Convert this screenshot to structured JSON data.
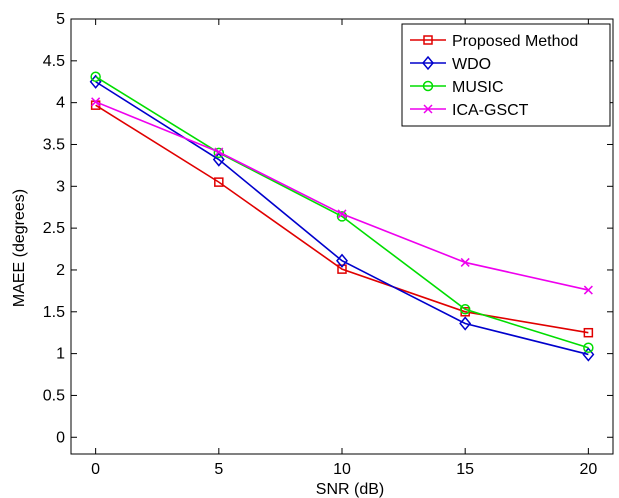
{
  "chart_data": {
    "type": "line",
    "title": "",
    "xlabel": "SNR (dB)",
    "ylabel": "MAEE (degrees)",
    "x": [
      0,
      5,
      10,
      15,
      20
    ],
    "xlim": [
      -1,
      21
    ],
    "ylim": [
      -0.2,
      5
    ],
    "xticks": [
      "0",
      "5",
      "10",
      "15",
      "20"
    ],
    "yticks": [
      "0",
      "0.5",
      "1",
      "1.5",
      "2",
      "2.5",
      "3",
      "3.5",
      "4",
      "4.5",
      "5"
    ],
    "grid": false,
    "legend_position": "top-right",
    "series": [
      {
        "name": "Proposed Method",
        "color": "#e00000",
        "marker": "square",
        "values": [
          3.97,
          3.05,
          2.01,
          1.5,
          1.25
        ]
      },
      {
        "name": "WDO",
        "color": "#0000cc",
        "marker": "diamond",
        "values": [
          4.25,
          3.32,
          2.11,
          1.36,
          0.99
        ]
      },
      {
        "name": "MUSIC",
        "color": "#00dd00",
        "marker": "circle",
        "values": [
          4.31,
          3.4,
          2.64,
          1.53,
          1.07
        ]
      },
      {
        "name": "ICA-GSCT",
        "color": "#ee00ee",
        "marker": "x",
        "values": [
          4.01,
          3.41,
          2.67,
          2.09,
          1.76
        ]
      }
    ]
  }
}
